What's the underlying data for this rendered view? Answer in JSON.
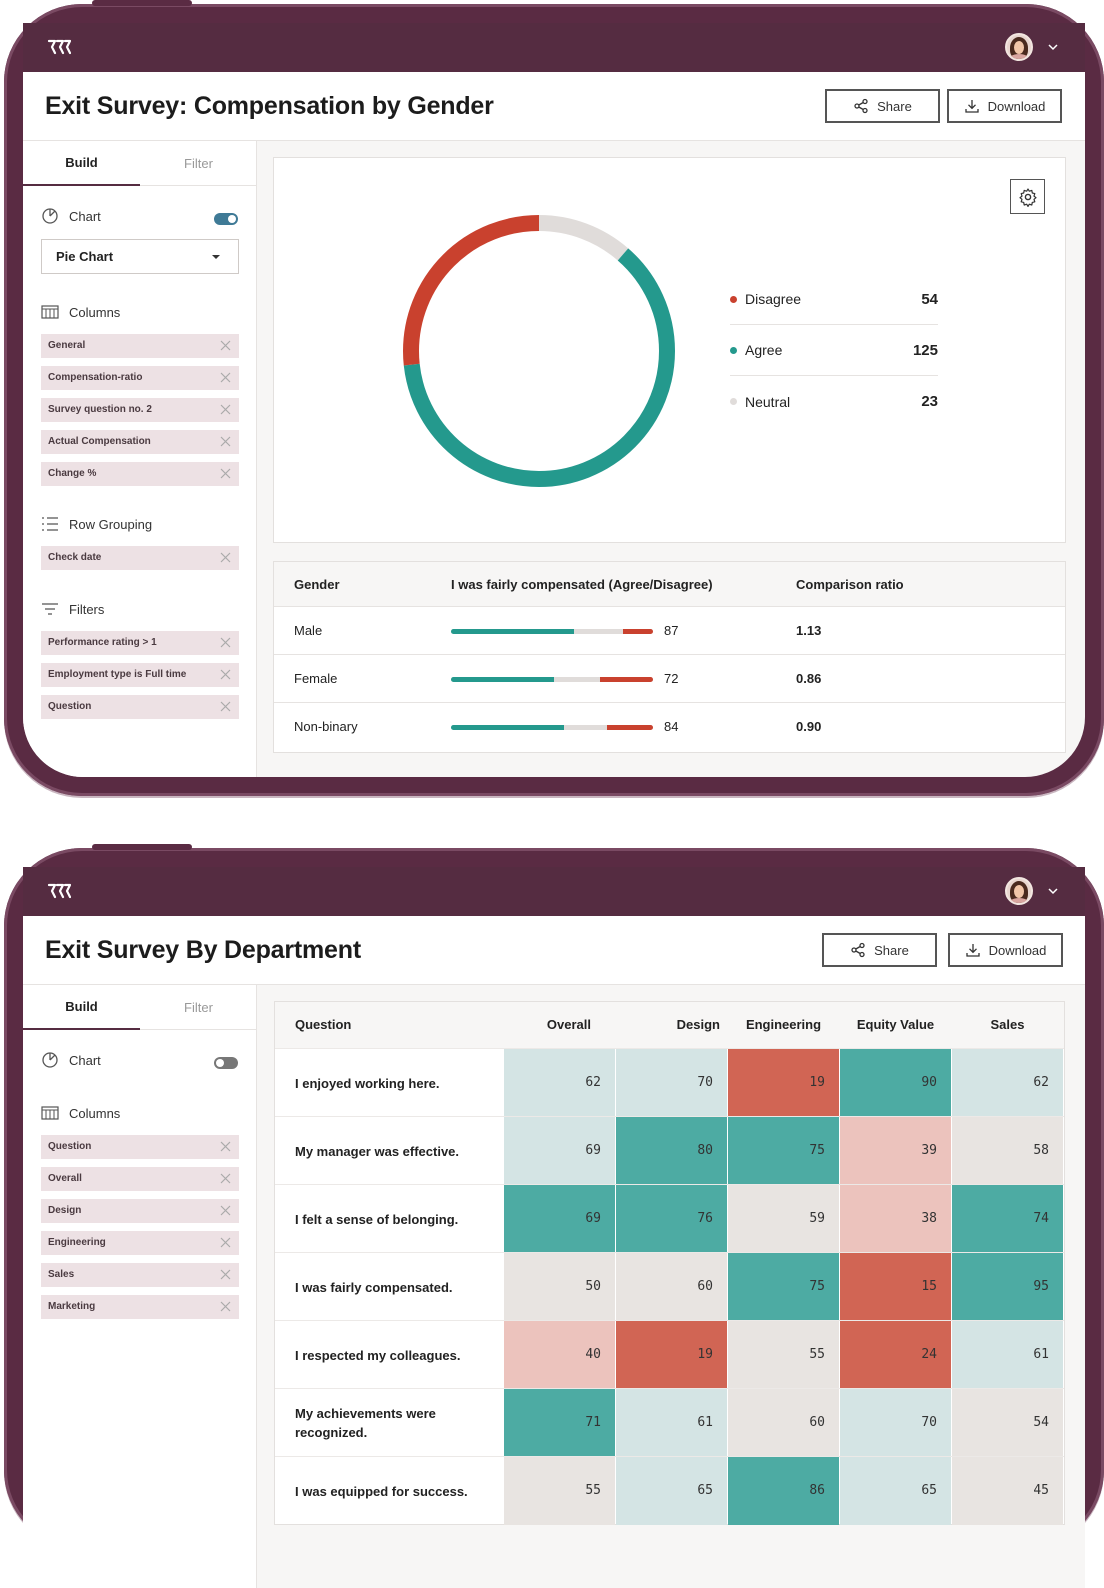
{
  "app": {
    "logo_icon": "logo-icon",
    "brand_color": "#552c41"
  },
  "screen1": {
    "title": "Exit Survey: Compensation by Gender",
    "share_label": "Share",
    "download_label": "Download",
    "tabs": {
      "build": "Build",
      "filter": "Filter"
    },
    "chart_section": {
      "label": "Chart",
      "toggle_on": true,
      "select_value": "Pie Chart"
    },
    "columns_section": {
      "label": "Columns",
      "items": [
        "General",
        "Compensation-ratio",
        "Survey question no. 2",
        "Actual Compensation",
        "Change %"
      ]
    },
    "row_grouping_section": {
      "label": "Row Grouping",
      "items": [
        "Check date"
      ]
    },
    "filters_section": {
      "label": "Filters",
      "items": [
        "Performance rating > 1",
        "Employment type is Full time",
        "Question"
      ]
    },
    "legend": [
      {
        "label": "Disagree",
        "value": "54",
        "color": "#c9412e"
      },
      {
        "label": "Agree",
        "value": "125",
        "color": "#24998d"
      },
      {
        "label": "Neutral",
        "value": "23",
        "color": "#e0dcda"
      }
    ],
    "table": {
      "headers": [
        "Gender",
        "I was fairly compensated (Agree/Disagree)",
        "Comparison ratio"
      ],
      "rows": [
        {
          "gender": "Male",
          "agree": 0.61,
          "disagree": 0.15,
          "value": "87",
          "ratio": "1.13"
        },
        {
          "gender": "Female",
          "agree": 0.51,
          "disagree": 0.26,
          "value": "72",
          "ratio": "0.86"
        },
        {
          "gender": "Non-binary",
          "agree": 0.56,
          "disagree": 0.23,
          "value": "84",
          "ratio": "0.90"
        }
      ]
    }
  },
  "chart_data": {
    "type": "pie",
    "categories": [
      "Disagree",
      "Agree",
      "Neutral"
    ],
    "values": [
      54,
      125,
      23
    ],
    "colors": [
      "#c9412e",
      "#24998d",
      "#e0dcda"
    ],
    "title": ""
  },
  "screen2": {
    "title": "Exit Survey By Department",
    "share_label": "Share",
    "download_label": "Download",
    "tabs": {
      "build": "Build",
      "filter": "Filter"
    },
    "chart_section": {
      "label": "Chart",
      "toggle_on": false
    },
    "columns_section": {
      "label": "Columns",
      "items": [
        "Question",
        "Overall",
        "Design",
        "Engineering",
        "Sales",
        "Marketing"
      ]
    },
    "heatmap": {
      "headers": [
        "Question",
        "Overall",
        "Design",
        "Engineering",
        "Equity Value",
        "Sales"
      ],
      "rows": [
        {
          "question": "I enjoyed working here.",
          "values": [
            "62",
            "70",
            "19",
            "90",
            "62"
          ],
          "levels": [
            3,
            3,
            0,
            4,
            3
          ]
        },
        {
          "question": "My manager was effective.",
          "values": [
            "69",
            "80",
            "75",
            "39",
            "58"
          ],
          "levels": [
            3,
            4,
            4,
            1,
            2
          ]
        },
        {
          "question": "I felt a sense of belonging.",
          "values": [
            "69",
            "76",
            "59",
            "38",
            "74"
          ],
          "levels": [
            4,
            4,
            2,
            1,
            4
          ]
        },
        {
          "question": "I was fairly compensated.",
          "values": [
            "50",
            "60",
            "75",
            "15",
            "95"
          ],
          "levels": [
            2,
            2,
            4,
            0,
            4
          ]
        },
        {
          "question": "I respected my colleagues.",
          "values": [
            "40",
            "19",
            "55",
            "24",
            "61"
          ],
          "levels": [
            1,
            0,
            2,
            0,
            3
          ]
        },
        {
          "question": "My achievements were recognized.",
          "values": [
            "71",
            "61",
            "60",
            "70",
            "54"
          ],
          "levels": [
            4,
            3,
            2,
            3,
            2
          ]
        },
        {
          "question": "I was equipped for success.",
          "values": [
            "55",
            "65",
            "86",
            "65",
            "45"
          ],
          "levels": [
            2,
            3,
            4,
            3,
            2
          ]
        }
      ]
    }
  }
}
